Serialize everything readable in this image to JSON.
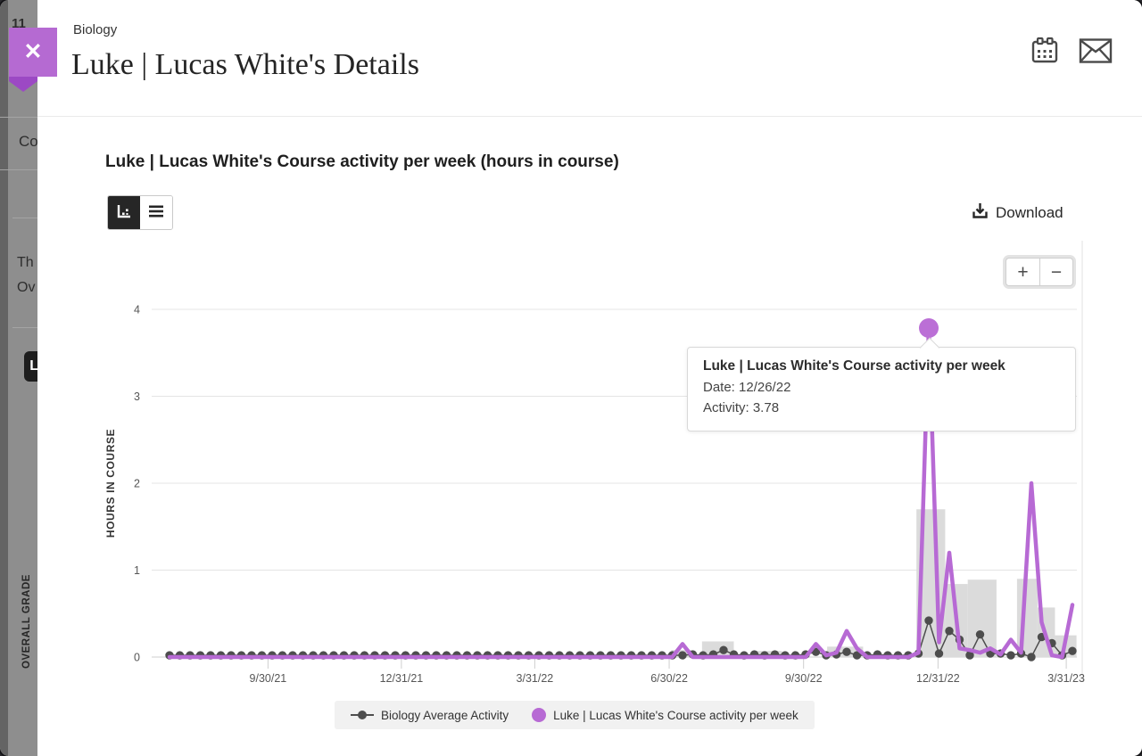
{
  "background": {
    "fragments": {
      "date": "11",
      "nav": "Co",
      "line1": "Th",
      "line2": "Ov",
      "chip": "L"
    },
    "vertical_label": "OVERALL GRADE"
  },
  "overlay": {
    "close_icon": "✕"
  },
  "header": {
    "course": "Biology",
    "title": "Luke | Lucas White's Details"
  },
  "chart_section": {
    "title": "Luke | Lucas White's Course activity per week (hours in course)",
    "download_label": "Download",
    "zoom_in": "+",
    "zoom_out": "−"
  },
  "tooltip": {
    "title": "Luke | Lucas White's Course activity per week",
    "date_label": "Date: 12/26/22",
    "activity_label": "Activity: 3.78"
  },
  "chart_data": {
    "type": "line",
    "title": "Luke | Lucas White's Course activity per week (hours in course)",
    "ylabel": "HOURS IN COURSE",
    "ylim": [
      0,
      4
    ],
    "yticks": [
      0,
      1,
      2,
      3,
      4
    ],
    "x_interval": "weekly",
    "x_start_date": "7/26/21",
    "x_tick_labels": [
      "9/30/21",
      "12/31/21",
      "3/31/22",
      "6/30/22",
      "9/30/22",
      "12/31/22",
      "3/31/23"
    ],
    "x_tick_positions": [
      9.6,
      22.6,
      35.6,
      48.7,
      61.8,
      74.9,
      87.4
    ],
    "grid": true,
    "legend_position": "bottom",
    "series": [
      {
        "name": "Biology Average Activity",
        "color": "#4d4d4d",
        "style": "line+markers",
        "values": [
          0.02,
          0.02,
          0.02,
          0.02,
          0.02,
          0.02,
          0.02,
          0.02,
          0.02,
          0.02,
          0.02,
          0.02,
          0.02,
          0.02,
          0.02,
          0.02,
          0.02,
          0.02,
          0.02,
          0.02,
          0.02,
          0.02,
          0.02,
          0.02,
          0.02,
          0.02,
          0.02,
          0.02,
          0.02,
          0.02,
          0.02,
          0.02,
          0.02,
          0.02,
          0.02,
          0.02,
          0.02,
          0.02,
          0.02,
          0.02,
          0.02,
          0.02,
          0.02,
          0.02,
          0.02,
          0.02,
          0.02,
          0.02,
          0.02,
          0.02,
          0.02,
          0.03,
          0.02,
          0.03,
          0.08,
          0.03,
          0.02,
          0.03,
          0.02,
          0.03,
          0.02,
          0.02,
          0.03,
          0.06,
          0.02,
          0.03,
          0.06,
          0.02,
          0.02,
          0.03,
          0.02,
          0.02,
          0.02,
          0.04,
          0.42,
          0.04,
          0.3,
          0.2,
          0.02,
          0.26,
          0.04,
          0.04,
          0.02,
          0.04,
          0.0,
          0.23,
          0.16,
          0.02,
          0.07
        ]
      },
      {
        "name": "Luke | Lucas White's Course activity per week",
        "color": "#b76ad4",
        "style": "line",
        "values": [
          0,
          0,
          0,
          0,
          0,
          0,
          0,
          0,
          0,
          0,
          0,
          0,
          0,
          0,
          0,
          0,
          0,
          0,
          0,
          0,
          0,
          0,
          0,
          0,
          0,
          0,
          0,
          0,
          0,
          0,
          0,
          0,
          0,
          0,
          0,
          0,
          0,
          0,
          0,
          0,
          0,
          0,
          0,
          0,
          0,
          0,
          0,
          0,
          0,
          0,
          0.15,
          0,
          0,
          0,
          0,
          0,
          0,
          0,
          0,
          0,
          0,
          0,
          0,
          0.15,
          0.02,
          0.05,
          0.3,
          0.1,
          0,
          0,
          0,
          0,
          0,
          0.05,
          3.78,
          0.17,
          1.2,
          0.1,
          0.08,
          0.05,
          0.1,
          0.03,
          0.2,
          0.05,
          2.0,
          0.4,
          0.02,
          0.0,
          0.6
        ]
      }
    ],
    "bars": [
      {
        "from": 48.9,
        "to": 50.9,
        "value": 0.08
      },
      {
        "from": 51.9,
        "to": 55.0,
        "value": 0.18
      },
      {
        "from": 56.8,
        "to": 59.7,
        "value": 0.07
      },
      {
        "from": 64.1,
        "to": 67.6,
        "value": 0.12
      },
      {
        "from": 72.8,
        "to": 75.6,
        "value": 1.7
      },
      {
        "from": 75.6,
        "to": 77.8,
        "value": 0.84
      },
      {
        "from": 77.8,
        "to": 80.6,
        "value": 0.89
      },
      {
        "from": 82.6,
        "to": 84.6,
        "value": 0.9
      },
      {
        "from": 84.6,
        "to": 86.3,
        "value": 0.57
      },
      {
        "from": 86.3,
        "to": 88.4,
        "value": 0.25
      }
    ],
    "highlight": {
      "series": 1,
      "index": 74,
      "date": "12/26/22",
      "value": 3.78,
      "marker_color": "#bb6fd6"
    }
  }
}
